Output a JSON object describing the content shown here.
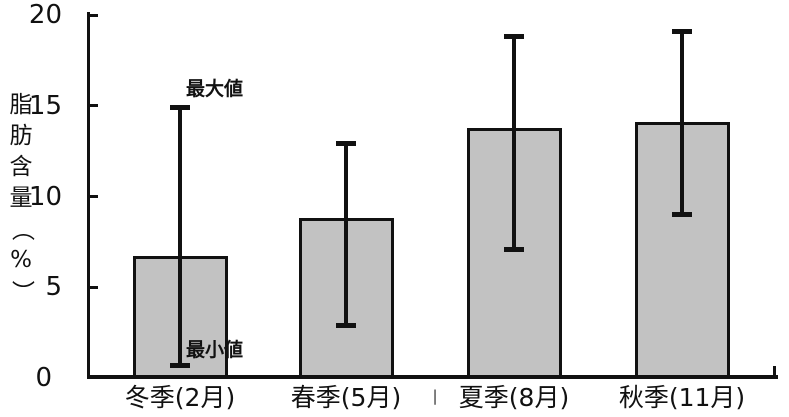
{
  "chart_data": {
    "type": "bar",
    "title": "",
    "xlabel": "",
    "ylabel": "脂肪含量（%）",
    "categories": [
      "冬季(2月)",
      "春季(5月)",
      "夏季(8月)",
      "秋季(11月)"
    ],
    "values": [
      6.7,
      8.8,
      13.8,
      14.1
    ],
    "error_bars": {
      "max": [
        14.9,
        12.9,
        18.8,
        19.1
      ],
      "min": [
        0.7,
        2.9,
        7.1,
        9.0
      ]
    },
    "yticks": [
      0,
      5,
      10,
      15,
      20
    ],
    "ylim": [
      0,
      20
    ],
    "grid": false,
    "legend_position": "none",
    "annotations": [
      {
        "text": "最大値",
        "refers_to": "error-bar-maximum",
        "value": 14.9
      },
      {
        "text": "最小値",
        "refers_to": "error-bar-minimum",
        "value": 0.7
      }
    ],
    "colors": {
      "bar_fill": "#c2c2c2",
      "bar_border": "#111111",
      "error_bar": "#111111",
      "axis": "#111111",
      "background": "#ffffff"
    }
  },
  "x_axis_separator_mark": "|"
}
